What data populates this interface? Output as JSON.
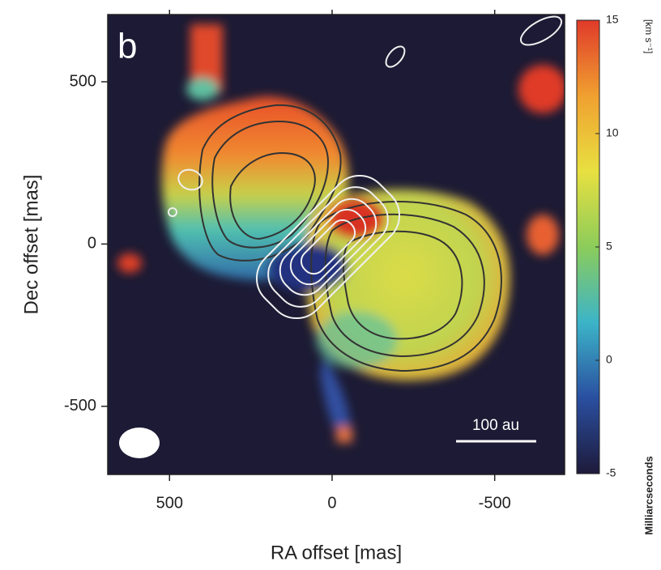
{
  "chart_data": {
    "type": "heatmap",
    "panel_label": "b",
    "xlabel": "RA offset [mas]",
    "ylabel": "Dec offset [mas]",
    "xlim": [
      690,
      -715
    ],
    "ylim": [
      -710,
      707
    ],
    "xticks": [
      500,
      0,
      -500
    ],
    "yticks": [
      500,
      0,
      -500
    ],
    "colorbar": {
      "label": "[km s⁻¹]",
      "lim": [
        -5,
        15
      ],
      "ticks": [
        15,
        10,
        5,
        0,
        -5
      ],
      "colormap": [
        "#1e1a3a",
        "#2a4fa0",
        "#3cb4c8",
        "#8ccc5a",
        "#e8e040",
        "#f0a030",
        "#e03a2a"
      ]
    },
    "scalebar_label": "100 au",
    "side_label": "Milliarcseconds"
  }
}
